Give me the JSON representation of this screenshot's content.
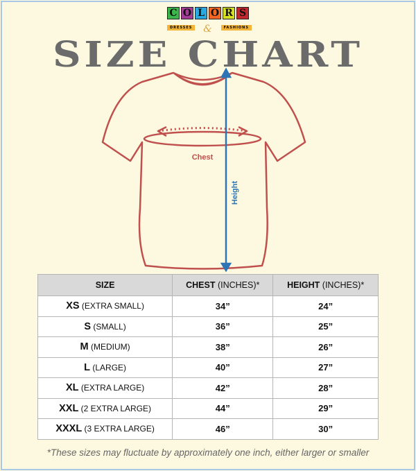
{
  "logo": {
    "letters": [
      "C",
      "O",
      "L",
      "O",
      "R",
      "S"
    ],
    "colors": [
      "#3cb54a",
      "#a43c97",
      "#29a9e0",
      "#f26522",
      "#d7df23",
      "#c1272d"
    ],
    "left": "DRESSES",
    "amp": "&",
    "right": "FASHIONS"
  },
  "title": "SIZE CHART",
  "diagram": {
    "chest_label": "Chest",
    "height_label": "Height",
    "outline_color": "#c0504d",
    "arrow_color": "#2e75b6"
  },
  "table": {
    "headers": [
      {
        "main": "SIZE",
        "sub": ""
      },
      {
        "main": "CHEST",
        "sub": " (INCHES)*"
      },
      {
        "main": "HEIGHT",
        "sub": " (INCHES)*"
      }
    ],
    "rows": [
      {
        "size": "XS",
        "desc": " (EXTRA SMALL)",
        "chest": "34”",
        "height": "24”"
      },
      {
        "size": "S",
        "desc": " (SMALL)",
        "chest": "36”",
        "height": "25”"
      },
      {
        "size": "M",
        "desc": " (MEDIUM)",
        "chest": "38”",
        "height": "26”"
      },
      {
        "size": "L",
        "desc": " (LARGE)",
        "chest": "40”",
        "height": "27”"
      },
      {
        "size": "XL",
        "desc": " (EXTRA LARGE)",
        "chest": "42”",
        "height": "28”"
      },
      {
        "size": "XXL",
        "desc": " (2 EXTRA LARGE)",
        "chest": "44”",
        "height": "29”"
      },
      {
        "size": "XXXL",
        "desc": " (3 EXTRA LARGE)",
        "chest": "46”",
        "height": "30”"
      }
    ]
  },
  "footnote": "*These sizes may fluctuate by approximately one inch, either larger or smaller"
}
